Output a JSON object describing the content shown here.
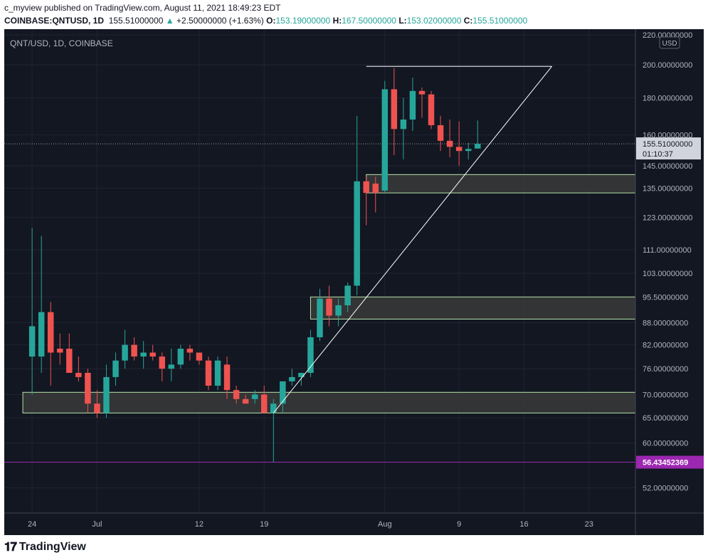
{
  "header": {
    "line1": "c_myview published on TradingView.com, August 11, 2021 18:49:23 EDT",
    "symbol": "COINBASE:QNTUSD, 1D",
    "price": "155.51000000",
    "change_arrow": "▲",
    "change": "+2.50000000 (+1.63%)",
    "o_label": "O:",
    "o": "153.19000000",
    "h_label": "H:",
    "h": "167.50000000",
    "l_label": "L:",
    "l": "153.02000000",
    "c_label": "C:",
    "c": "155.51000000"
  },
  "footer": {
    "brand": "TradingView",
    "logo_icon": "tradingview-logo-icon"
  },
  "colors": {
    "background": "#131722",
    "up": "#26a69a",
    "down": "#ef5350",
    "grid": "#1f2433",
    "zone_border": "#b6e3a8",
    "zone_fill": "#3a3a3a",
    "support_line": "#9c27b0"
  },
  "chart_data": {
    "type": "candlestick",
    "title": "QNT/USD, 1D, COINBASE",
    "currency_badge": "USD",
    "y_scale": "log",
    "ylim": [
      48,
      224
    ],
    "y_ticks": [
      {
        "v": 52,
        "label": "52.00000000"
      },
      {
        "v": 60,
        "label": "60.00000000"
      },
      {
        "v": 65,
        "label": "65.00000000"
      },
      {
        "v": 70,
        "label": "70.00000000"
      },
      {
        "v": 76,
        "label": "76.00000000"
      },
      {
        "v": 82,
        "label": "82.00000000"
      },
      {
        "v": 88,
        "label": "88.00000000"
      },
      {
        "v": 95.5,
        "label": "95.50000000"
      },
      {
        "v": 103,
        "label": "103.00000000"
      },
      {
        "v": 111,
        "label": "111.00000000"
      },
      {
        "v": 123,
        "label": "123.00000000"
      },
      {
        "v": 135,
        "label": "135.00000000"
      },
      {
        "v": 145,
        "label": "145.00000000"
      },
      {
        "v": 160,
        "label": "160.00000000"
      },
      {
        "v": 180,
        "label": "180.00000000"
      },
      {
        "v": 200,
        "label": "200.00000000"
      },
      {
        "v": 220,
        "label": "220.00000000"
      }
    ],
    "x_ticks": [
      {
        "date": "2021-06-24",
        "label": "24"
      },
      {
        "date": "2021-07-01",
        "label": "Jul"
      },
      {
        "date": "2021-07-12",
        "label": "12"
      },
      {
        "date": "2021-07-19",
        "label": "19"
      },
      {
        "date": "2021-08-01",
        "label": "Aug"
      },
      {
        "date": "2021-08-09",
        "label": "9"
      },
      {
        "date": "2021-08-16",
        "label": "16"
      },
      {
        "date": "2021-08-23",
        "label": "23"
      }
    ],
    "xlim": [
      "2021-06-21",
      "2021-08-28"
    ],
    "candles": [
      {
        "date": "2021-06-24",
        "o": 79,
        "h": 119,
        "l": 70,
        "c": 87
      },
      {
        "date": "2021-06-25",
        "o": 79,
        "h": 116,
        "l": 75,
        "c": 91
      },
      {
        "date": "2021-06-26",
        "o": 91,
        "h": 94,
        "l": 72,
        "c": 80
      },
      {
        "date": "2021-06-27",
        "o": 81,
        "h": 85,
        "l": 77,
        "c": 80
      },
      {
        "date": "2021-06-28",
        "o": 81,
        "h": 85,
        "l": 75,
        "c": 75
      },
      {
        "date": "2021-06-29",
        "o": 75,
        "h": 79,
        "l": 73,
        "c": 74
      },
      {
        "date": "2021-06-30",
        "o": 75,
        "h": 76,
        "l": 66,
        "c": 68
      },
      {
        "date": "2021-07-01",
        "o": 68,
        "h": 71,
        "l": 65,
        "c": 66
      },
      {
        "date": "2021-07-02",
        "o": 66,
        "h": 77,
        "l": 65,
        "c": 74
      },
      {
        "date": "2021-07-03",
        "o": 74,
        "h": 80,
        "l": 72,
        "c": 78
      },
      {
        "date": "2021-07-04",
        "o": 78,
        "h": 86,
        "l": 76,
        "c": 82
      },
      {
        "date": "2021-07-05",
        "o": 82,
        "h": 84,
        "l": 78,
        "c": 79
      },
      {
        "date": "2021-07-06",
        "o": 79,
        "h": 83,
        "l": 76,
        "c": 80
      },
      {
        "date": "2021-07-07",
        "o": 80,
        "h": 82,
        "l": 78,
        "c": 79
      },
      {
        "date": "2021-07-08",
        "o": 79,
        "h": 80,
        "l": 73,
        "c": 76
      },
      {
        "date": "2021-07-09",
        "o": 76,
        "h": 81,
        "l": 73,
        "c": 77
      },
      {
        "date": "2021-07-10",
        "o": 77,
        "h": 82,
        "l": 76,
        "c": 81
      },
      {
        "date": "2021-07-11",
        "o": 81,
        "h": 82,
        "l": 78,
        "c": 80
      },
      {
        "date": "2021-07-12",
        "o": 80,
        "h": 80,
        "l": 77,
        "c": 78
      },
      {
        "date": "2021-07-13",
        "o": 78,
        "h": 79,
        "l": 71,
        "c": 72
      },
      {
        "date": "2021-07-14",
        "o": 72,
        "h": 79,
        "l": 71,
        "c": 78
      },
      {
        "date": "2021-07-15",
        "o": 77,
        "h": 79,
        "l": 69,
        "c": 71
      },
      {
        "date": "2021-07-16",
        "o": 71,
        "h": 72,
        "l": 68,
        "c": 69
      },
      {
        "date": "2021-07-17",
        "o": 69,
        "h": 70,
        "l": 68,
        "c": 68
      },
      {
        "date": "2021-07-18",
        "o": 69,
        "h": 71,
        "l": 68,
        "c": 70
      },
      {
        "date": "2021-07-19",
        "o": 70,
        "h": 72,
        "l": 66,
        "c": 66
      },
      {
        "date": "2021-07-20",
        "o": 66,
        "h": 69,
        "l": 56.4,
        "c": 68
      },
      {
        "date": "2021-07-21",
        "o": 68,
        "h": 73,
        "l": 66,
        "c": 73
      },
      {
        "date": "2021-07-22",
        "o": 73,
        "h": 76,
        "l": 72,
        "c": 74
      },
      {
        "date": "2021-07-23",
        "o": 74,
        "h": 75,
        "l": 72,
        "c": 75
      },
      {
        "date": "2021-07-24",
        "o": 75,
        "h": 86,
        "l": 74,
        "c": 84
      },
      {
        "date": "2021-07-25",
        "o": 84,
        "h": 98,
        "l": 83,
        "c": 95
      },
      {
        "date": "2021-07-26",
        "o": 95,
        "h": 99,
        "l": 87,
        "c": 90
      },
      {
        "date": "2021-07-27",
        "o": 90,
        "h": 95,
        "l": 87,
        "c": 93
      },
      {
        "date": "2021-07-28",
        "o": 93,
        "h": 100,
        "l": 91,
        "c": 99
      },
      {
        "date": "2021-07-29",
        "o": 99,
        "h": 170,
        "l": 96,
        "c": 138
      },
      {
        "date": "2021-07-30",
        "o": 138,
        "h": 140,
        "l": 120,
        "c": 133
      },
      {
        "date": "2021-07-31",
        "o": 137,
        "h": 140,
        "l": 125,
        "c": 133
      },
      {
        "date": "2021-08-01",
        "o": 134,
        "h": 190,
        "l": 133,
        "c": 185
      },
      {
        "date": "2021-08-02",
        "o": 185,
        "h": 198,
        "l": 150,
        "c": 163
      },
      {
        "date": "2021-08-03",
        "o": 163,
        "h": 180,
        "l": 148,
        "c": 168
      },
      {
        "date": "2021-08-04",
        "o": 168,
        "h": 192,
        "l": 162,
        "c": 184
      },
      {
        "date": "2021-08-05",
        "o": 184,
        "h": 186,
        "l": 169,
        "c": 182
      },
      {
        "date": "2021-08-06",
        "o": 182,
        "h": 184,
        "l": 163,
        "c": 165
      },
      {
        "date": "2021-08-07",
        "o": 165,
        "h": 170,
        "l": 152,
        "c": 157
      },
      {
        "date": "2021-08-08",
        "o": 157,
        "h": 168,
        "l": 149,
        "c": 154
      },
      {
        "date": "2021-08-09",
        "o": 154,
        "h": 167,
        "l": 145,
        "c": 152
      },
      {
        "date": "2021-08-10",
        "o": 152,
        "h": 156,
        "l": 148,
        "c": 153
      },
      {
        "date": "2021-08-11",
        "o": 153.19,
        "h": 167.5,
        "l": 153.02,
        "c": 155.51
      }
    ],
    "zones": [
      {
        "from": "2021-06-23",
        "to": "2021-08-28",
        "low": 66,
        "high": 70.5
      },
      {
        "from": "2021-07-24",
        "to": "2021-08-28",
        "low": 89,
        "high": 95.5
      },
      {
        "from": "2021-07-30",
        "to": "2021-08-28",
        "low": 133,
        "high": 141
      }
    ],
    "lines": [
      {
        "x1": "2021-07-30",
        "y1": 199,
        "x2": "2021-08-19",
        "y2": 199,
        "color": "#ffffff"
      },
      {
        "x1": "2021-07-20",
        "y1": 66,
        "x2": "2021-08-19",
        "y2": 199,
        "color": "#ffffff"
      }
    ],
    "horizontal_level": {
      "value": 56.43452369,
      "label": "56.43452369",
      "color": "#9c27b0"
    },
    "last_price": {
      "value": 155.51,
      "label": "155.51000000",
      "countdown": "01:10:37"
    }
  }
}
